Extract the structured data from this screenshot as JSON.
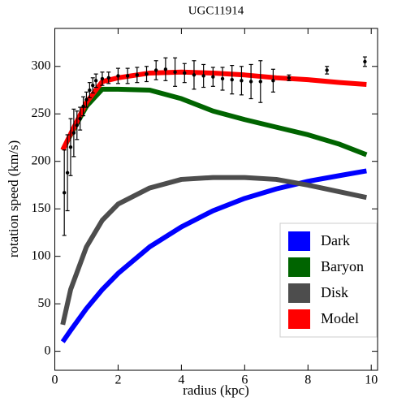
{
  "chart_data": {
    "type": "line",
    "title": "UGC11914",
    "x_label": "radius (kpc)",
    "y_label": "rotation speed (km/s)",
    "xlim": [
      0,
      10.2
    ],
    "ylim": [
      -20,
      340
    ],
    "xticks": [
      0,
      2,
      4,
      6,
      8,
      10
    ],
    "yticks": [
      0,
      50,
      100,
      150,
      200,
      250,
      300
    ],
    "legend": "lower right",
    "x": [
      0.25,
      0.5,
      1,
      1.5,
      2,
      3,
      4,
      5,
      6,
      7,
      8,
      9,
      9.85
    ],
    "series": [
      {
        "name": "Dark",
        "color": "#0000ff",
        "values": [
          10,
          22,
          45,
          65,
          82,
          110,
          131,
          148,
          161,
          171,
          179,
          185,
          190
        ]
      },
      {
        "name": "Baryon",
        "color": "#006400",
        "values": [
          212,
          228,
          258,
          276,
          276,
          275,
          266,
          253,
          244,
          236,
          228,
          218,
          207
        ]
      },
      {
        "name": "Disk",
        "color": "#4d4d4d",
        "values": [
          28,
          65,
          110,
          138,
          155,
          172,
          181,
          183,
          183,
          181,
          175,
          168,
          162
        ]
      },
      {
        "name": "Model",
        "color": "#ff0000",
        "values": [
          212,
          229,
          262,
          284,
          288,
          293,
          294,
          293,
          291,
          288,
          286,
          283,
          281
        ]
      }
    ],
    "points": {
      "color": "#000000",
      "x": [
        0.3,
        0.4,
        0.5,
        0.6,
        0.7,
        0.8,
        0.9,
        1.0,
        1.1,
        1.2,
        1.3,
        1.5,
        1.7,
        2.0,
        2.3,
        2.6,
        2.9,
        3.2,
        3.5,
        3.8,
        4.1,
        4.4,
        4.7,
        5.0,
        5.3,
        5.6,
        5.9,
        6.2,
        6.5,
        6.9,
        7.4,
        8.6,
        9.8
      ],
      "values": [
        167,
        188,
        215,
        230,
        238,
        245,
        258,
        265,
        275,
        280,
        285,
        287,
        288,
        290,
        290,
        291,
        292,
        296,
        297,
        294,
        293,
        291,
        290,
        289,
        287,
        286,
        285,
        284,
        284,
        285,
        288,
        296,
        305
      ],
      "errors": [
        45,
        40,
        30,
        25,
        15,
        12,
        10,
        8,
        8,
        8,
        7,
        7,
        6,
        8,
        8,
        8,
        8,
        10,
        12,
        15,
        10,
        15,
        12,
        10,
        12,
        15,
        15,
        18,
        22,
        12,
        3,
        4,
        5
      ]
    }
  }
}
